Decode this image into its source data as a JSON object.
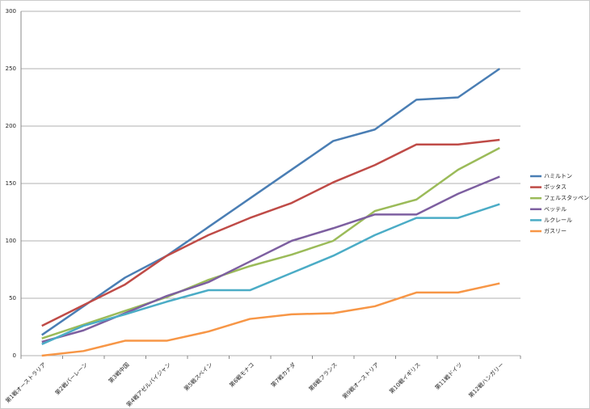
{
  "chart_data": {
    "type": "line",
    "categories": [
      "第1戦オーストラリア",
      "第2戦バーレーン",
      "第3戦中国",
      "第4戦アゼルバイジャン",
      "第5戦スペイン",
      "第6戦モナコ",
      "第7戦カナダ",
      "第8戦フランス",
      "第9戦オーストリア",
      "第10戦イギリス",
      "第11戦ドイツ",
      "第12戦ハンガリー"
    ],
    "series": [
      {
        "name": "ハミルトン",
        "color": "#4a7eb4",
        "values": [
          18,
          43,
          68,
          87,
          112,
          137,
          162,
          187,
          197,
          223,
          225,
          250
        ]
      },
      {
        "name": "ボッタス",
        "color": "#bf4b47",
        "values": [
          26,
          44,
          62,
          87,
          105,
          120,
          133,
          151,
          166,
          184,
          184,
          188
        ]
      },
      {
        "name": "フェルスタッペン",
        "color": "#9bbb59",
        "values": [
          15,
          27,
          39,
          51,
          66,
          78,
          88,
          100,
          126,
          136,
          162,
          181
        ]
      },
      {
        "name": "ベッテル",
        "color": "#7d5fa0",
        "values": [
          12,
          22,
          37,
          52,
          64,
          82,
          100,
          111,
          123,
          123,
          141,
          156
        ]
      },
      {
        "name": "ルクレール",
        "color": "#4bacc6",
        "values": [
          10,
          26,
          36,
          47,
          57,
          57,
          72,
          87,
          105,
          120,
          120,
          132
        ]
      },
      {
        "name": "ガスリー",
        "color": "#f79646",
        "values": [
          0,
          4,
          13,
          13,
          21,
          32,
          36,
          37,
          43,
          55,
          55,
          63
        ]
      }
    ],
    "ylim": [
      0,
      300
    ],
    "yticks": [
      0,
      50,
      100,
      150,
      200,
      250,
      300
    ],
    "grid": true,
    "legend": "right"
  }
}
